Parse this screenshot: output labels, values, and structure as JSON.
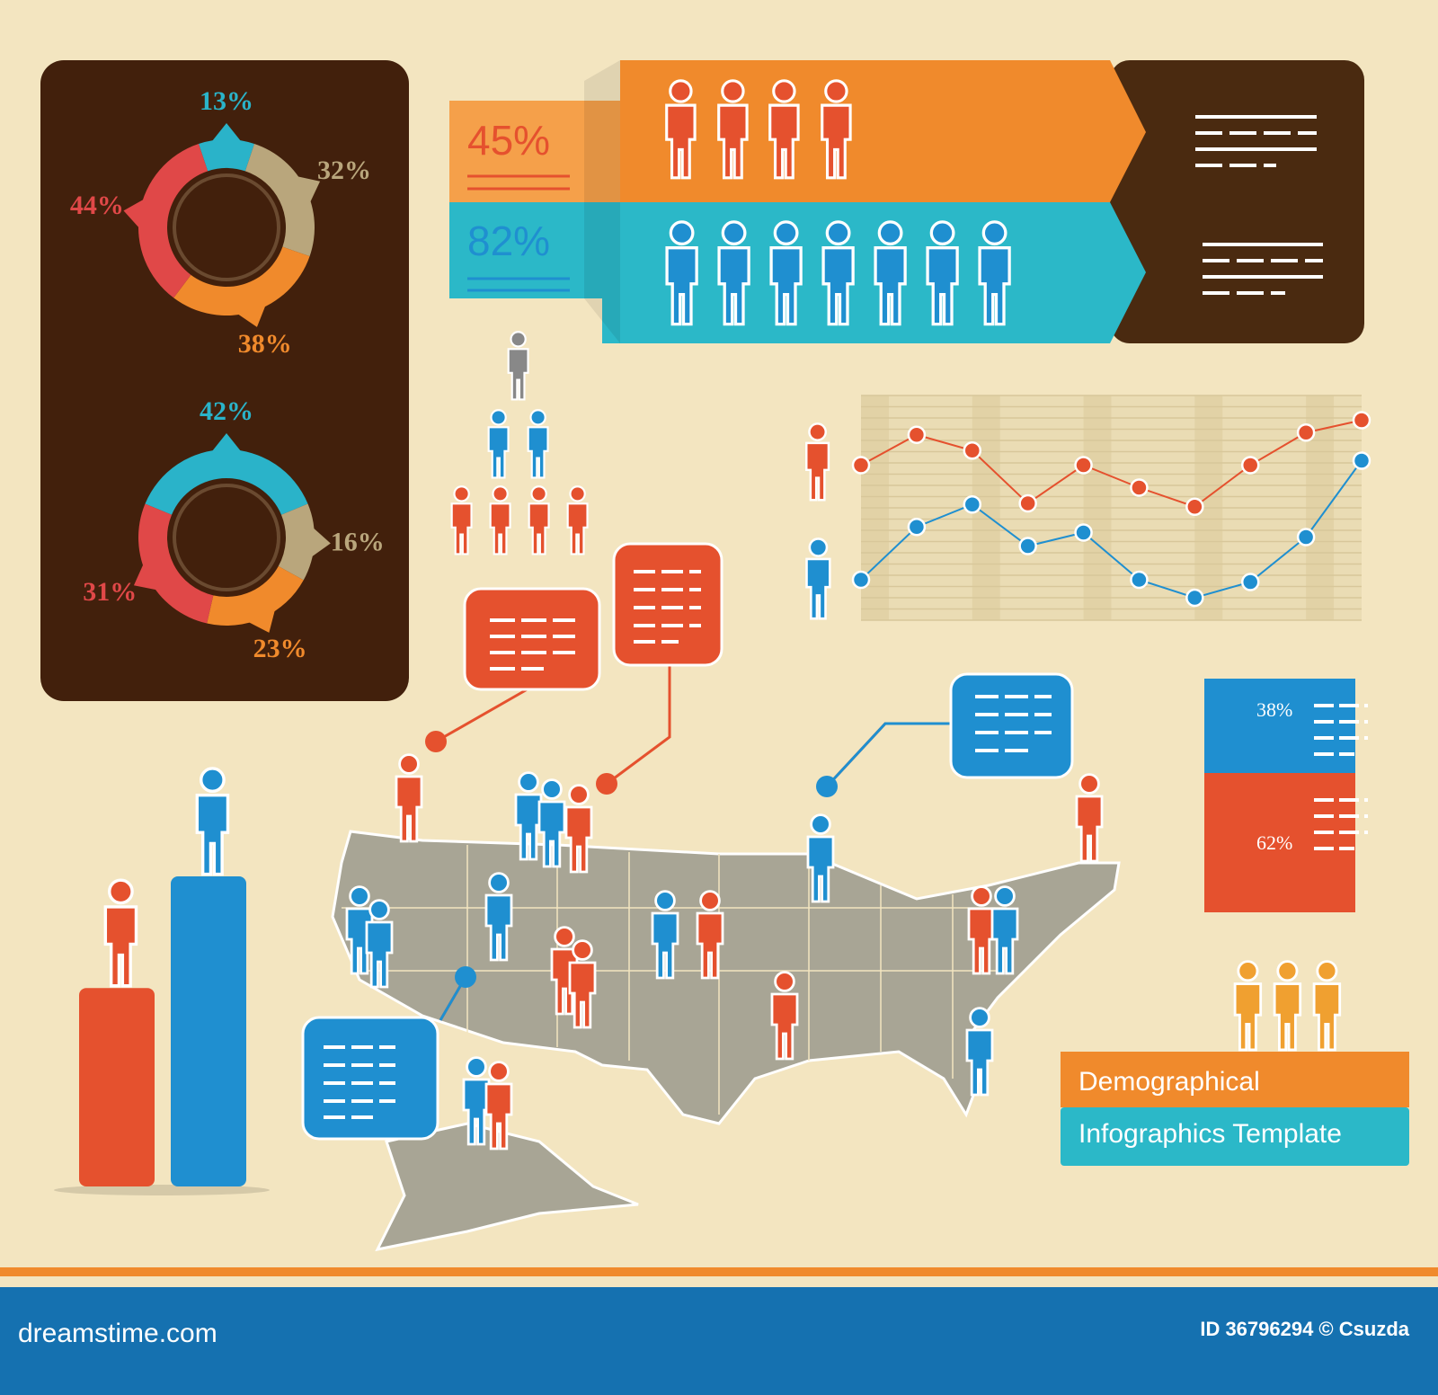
{
  "chart_data": [
    {
      "type": "donut",
      "values": [
        13,
        32,
        38,
        44
      ],
      "value_labels": [
        "13%",
        "32%",
        "38%",
        "44%"
      ],
      "colors": [
        "#2ab3c9",
        "#b9a67c",
        "#f08a2c",
        "#e04848"
      ]
    },
    {
      "type": "donut",
      "values": [
        42,
        16,
        23,
        31
      ],
      "value_labels": [
        "42%",
        "16%",
        "23%",
        "31%"
      ],
      "colors": [
        "#2ab3c9",
        "#b9a67c",
        "#f08a2c",
        "#e04848"
      ]
    },
    {
      "type": "line",
      "categories": [
        null,
        null,
        null,
        null,
        null,
        null,
        null,
        null,
        null,
        null
      ],
      "ylim": [
        0,
        20
      ],
      "grid": true,
      "series": [
        {
          "color": "#e5512e",
          "values": [
            13.8,
            16.5,
            15.1,
            10.4,
            13.8,
            11.8,
            10.1,
            13.8,
            16.7,
            17.8
          ]
        },
        {
          "color": "#1f8fd0",
          "values": [
            3.6,
            8.3,
            10.3,
            6.6,
            7.8,
            3.6,
            2.0,
            3.4,
            7.4,
            14.2
          ]
        }
      ]
    },
    {
      "type": "bar",
      "categories": [
        null,
        null
      ],
      "ylim": [
        0,
        100
      ],
      "values": [
        64,
        100
      ],
      "colors": [
        "#e5512e",
        "#1f8fd0"
      ]
    }
  ],
  "comparison_bands": [
    {
      "label": "45%",
      "color": "#e5512e"
    },
    {
      "label": "82%",
      "color": "#1f8fd0"
    }
  ],
  "split_figure": {
    "top_label": "38%",
    "bottom_label": "62%"
  },
  "title": {
    "line1": "Demographical",
    "line2": "Infographics Template"
  },
  "footer": {
    "site": "dreamstime.com",
    "credit": "ID 36796294 © Csuzda"
  }
}
